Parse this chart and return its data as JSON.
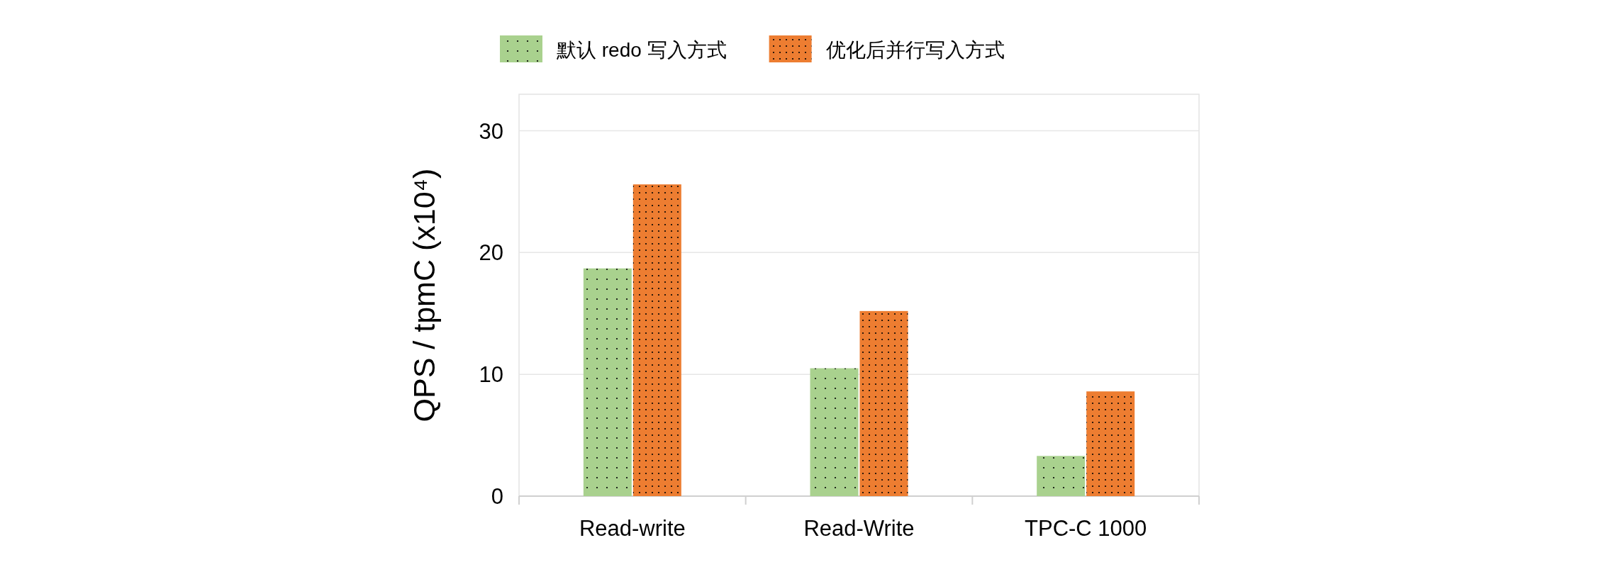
{
  "chart_data": {
    "type": "bar",
    "ylabel": "QPS / tpmC (x10⁴)",
    "categories": [
      "Read-write",
      "Read-Write",
      "TPC-C 1000"
    ],
    "series": [
      {
        "name": "默认 redo 写入方式",
        "color": "#a9d18e",
        "values": [
          18.7,
          10.5,
          3.3
        ]
      },
      {
        "name": "优化后并行写入方式",
        "color": "#ed7d31",
        "values": [
          25.6,
          15.2,
          8.6
        ]
      }
    ],
    "ylim": [
      0,
      33
    ],
    "yticks": [
      0,
      10,
      20,
      30
    ],
    "grid": "y",
    "legend": "top"
  }
}
